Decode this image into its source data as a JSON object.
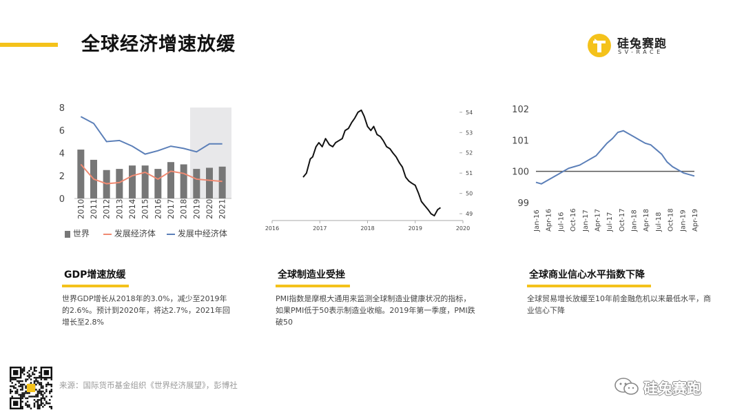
{
  "header": {
    "title": "全球经济增速放缓"
  },
  "logo": {
    "icon": "rabbit-logo-icon",
    "name": "硅兔赛跑",
    "sub": "SV-RACE",
    "color": "#f4c21b"
  },
  "colors": {
    "accent": "#f4c21b",
    "bar": "#777777",
    "developed": "#f08a72",
    "developing": "#5b7fb8",
    "line": "#111111"
  },
  "chart_data": [
    {
      "type": "bar",
      "categories": [
        "2010",
        "2011",
        "2012",
        "2013",
        "2014",
        "2015",
        "2016",
        "2017",
        "2018",
        "2019",
        "2020",
        "2021"
      ],
      "ylim": [
        0,
        8
      ],
      "yticks": [
        "0",
        "2",
        "4",
        "6",
        "8"
      ],
      "highlight_categories": [
        "2019",
        "2020",
        "2021"
      ],
      "series": [
        {
          "name": "世界",
          "kind": "bar",
          "values": [
            4.3,
            3.4,
            2.5,
            2.6,
            2.9,
            2.9,
            2.6,
            3.2,
            3.0,
            2.6,
            2.7,
            2.8
          ]
        },
        {
          "name": "发展经济体",
          "kind": "line",
          "values": [
            3.0,
            1.7,
            1.3,
            1.4,
            2.0,
            2.3,
            1.7,
            2.4,
            2.2,
            1.7,
            1.6,
            1.5
          ]
        },
        {
          "name": "发展中经济体",
          "kind": "line",
          "values": [
            7.2,
            6.6,
            5.0,
            5.1,
            4.6,
            3.9,
            4.2,
            4.6,
            4.4,
            4.1,
            4.8,
            4.8
          ]
        }
      ]
    },
    {
      "type": "line",
      "ylim": [
        48.8,
        54.3
      ],
      "yticks": [
        "54",
        "53",
        "52",
        "51",
        "50",
        "49"
      ],
      "xticks": [
        "2016",
        "2017",
        "2018",
        "2019",
        "2020"
      ],
      "x": [
        2016.65,
        2016.72,
        2016.8,
        2016.85,
        2016.92,
        2016.98,
        2017.05,
        2017.12,
        2017.2,
        2017.27,
        2017.33,
        2017.4,
        2017.47,
        2017.53,
        2017.6,
        2017.67,
        2017.73,
        2017.8,
        2017.87,
        2017.93,
        2018.0,
        2018.07,
        2018.13,
        2018.2,
        2018.27,
        2018.33,
        2018.4,
        2018.47,
        2018.53,
        2018.6,
        2018.67,
        2018.73,
        2018.8,
        2018.87,
        2018.93,
        2019.0,
        2019.07,
        2019.13,
        2019.2,
        2019.27,
        2019.33,
        2019.4,
        2019.47,
        2019.53
      ],
      "series": [
        {
          "name": "",
          "values": [
            50.8,
            51.0,
            51.7,
            51.8,
            52.3,
            52.5,
            52.3,
            52.7,
            52.4,
            52.3,
            52.5,
            52.6,
            52.7,
            53.1,
            53.2,
            53.5,
            53.7,
            54.0,
            54.1,
            53.8,
            53.3,
            53.1,
            53.3,
            52.9,
            52.8,
            52.6,
            52.3,
            52.2,
            52.0,
            51.8,
            51.5,
            51.3,
            50.8,
            50.6,
            50.5,
            50.4,
            50.0,
            49.6,
            49.4,
            49.2,
            49.0,
            48.9,
            49.2,
            49.3
          ]
        }
      ]
    },
    {
      "type": "line",
      "ylim": [
        99,
        102
      ],
      "yticks": [
        "102",
        "101",
        "100",
        "99"
      ],
      "xticks": [
        "Jan-16",
        "Apr-16",
        "Jul-16",
        "Oct-16",
        "Jan-17",
        "Apr-17",
        "Jul-17",
        "Oct-17",
        "Jan-18",
        "Apr-18",
        "Jul-18",
        "Oct-18",
        "Jan-19",
        "Apr-19"
      ],
      "reference_line": 100,
      "series": [
        {
          "name": "",
          "values": [
            99.65,
            99.6,
            99.7,
            99.8,
            99.9,
            100.0,
            100.1,
            100.15,
            100.2,
            100.3,
            100.4,
            100.5,
            100.7,
            100.9,
            101.05,
            101.25,
            101.3,
            101.2,
            101.1,
            101.0,
            100.9,
            100.85,
            100.7,
            100.55,
            100.3,
            100.15,
            100.05,
            99.95,
            99.9,
            99.85
          ]
        }
      ]
    }
  ],
  "cards": [
    {
      "title": "GDP增速放缓",
      "body": "世界GDP增长从2018年的3.0%，减少至2019年的2.6%。预计到2020年，将达2.7%，2021年回增长至2.8%"
    },
    {
      "title": "全球制造业受挫",
      "body": "PMI指数是摩根大通用来监测全球制造业健康状况的指标，如果PMI低于50表示制造业收缩。2019年第一季度，PMI跌破50"
    },
    {
      "title": "全球商业信心水平指数下降",
      "body": "全球贸易增长放缓至10年前金融危机以来最低水平，商业信心下降"
    }
  ],
  "footer": {
    "qr_icon": "qr-code-icon",
    "source": "来源：国际货币基金组织《世界经济展望》，彭博社",
    "watermark_icon": "wechat-icon",
    "watermark_text": "硅兔赛跑"
  }
}
